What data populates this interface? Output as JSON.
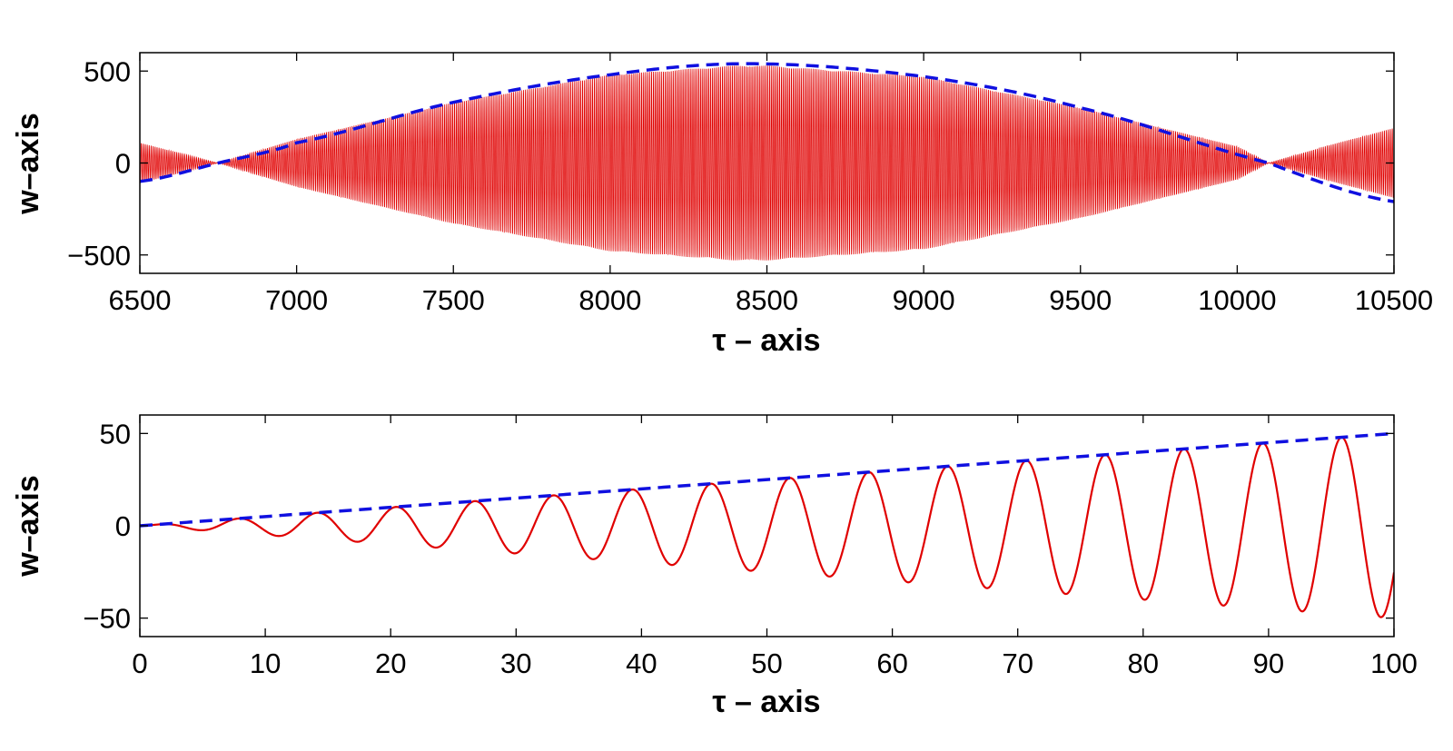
{
  "chart_data": [
    {
      "type": "line",
      "xlabel": "τ – axis",
      "ylabel": "w–axis",
      "xlim": [
        6500,
        10500
      ],
      "ylim": [
        -600,
        600
      ],
      "xticks": [
        6500,
        7000,
        7500,
        8000,
        8500,
        9000,
        9500,
        10000,
        10500
      ],
      "yticks": [
        -500,
        0,
        500
      ],
      "grid": false,
      "legend": "none",
      "series": [
        {
          "role": "oscillation",
          "color": "#e00000",
          "style": "solid",
          "frequency_rad_per_unit_tau": 1.0,
          "envelope": {
            "x": [
              6500,
              6750,
              7000,
              7500,
              8000,
              8400,
              8500,
              9000,
              9500,
              10000,
              10100,
              10300,
              10500
            ],
            "amplitude": [
              110,
              0,
              130,
              330,
              480,
              530,
              530,
              470,
              300,
              90,
              0,
              100,
              190
            ]
          }
        },
        {
          "role": "envelope",
          "color": "#1010e0",
          "style": "dashed",
          "x": [
            6500,
            6750,
            7000,
            7500,
            8000,
            8450,
            9000,
            9500,
            10100,
            10500
          ],
          "y": [
            -100,
            0,
            110,
            330,
            480,
            540,
            470,
            300,
            0,
            -210
          ]
        }
      ]
    },
    {
      "type": "line",
      "xlabel": "τ – axis",
      "ylabel": "w–axis",
      "xlim": [
        0,
        100
      ],
      "ylim": [
        -60,
        60
      ],
      "xticks": [
        0,
        10,
        20,
        30,
        40,
        50,
        60,
        70,
        80,
        90,
        100
      ],
      "yticks": [
        -50,
        0,
        50
      ],
      "grid": false,
      "legend": "none",
      "series": [
        {
          "role": "oscillation",
          "color": "#e00000",
          "style": "solid",
          "equation": "w = (τ/2)·sin(τ)",
          "x_range": [
            0,
            100
          ]
        },
        {
          "role": "envelope",
          "color": "#1010e0",
          "style": "dashed",
          "x": [
            0,
            100
          ],
          "y": [
            0,
            50
          ]
        }
      ]
    }
  ]
}
